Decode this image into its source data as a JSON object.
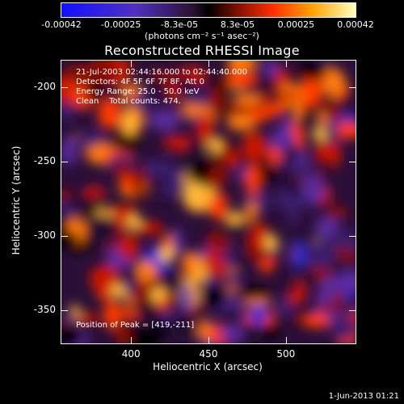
{
  "colorbar": {
    "ticks": [
      {
        "label": "-0.00042",
        "value": -0.00042
      },
      {
        "label": "-0.00025",
        "value": -0.00025
      },
      {
        "label": "-8.3e-05",
        "value": -8.3e-05
      },
      {
        "label": "8.3e-05",
        "value": 8.3e-05
      },
      {
        "label": "0.00025",
        "value": 0.00025
      },
      {
        "label": "0.00042",
        "value": 0.00042
      }
    ],
    "units": "(photons cm⁻² s⁻¹ asec⁻²)"
  },
  "title": "Reconstructed RHESSI Image",
  "info": {
    "line1": "21-Jul-2003 02:44:16.000 to 02:44:40.000",
    "line2": "Detectors: 4F 5F 6F 7F 8F, Att 0",
    "line3": "Energy Range: 25.0 - 50.0 keV",
    "line4": "Clean    Total counts: 474."
  },
  "peak": "Position of Peak = [419,-211]",
  "axes": {
    "xlabel": "Heliocentric X (arcsec)",
    "ylabel": "Heliocentric Y (arcsec)",
    "xticks": [
      {
        "label": "400",
        "value": 400
      },
      {
        "label": "450",
        "value": 450
      },
      {
        "label": "500",
        "value": 500
      }
    ],
    "yticks": [
      {
        "label": "-200",
        "value": -200
      },
      {
        "label": "-250",
        "value": -250
      },
      {
        "label": "-300",
        "value": -300
      },
      {
        "label": "-350",
        "value": -350
      }
    ],
    "xlim": [
      355,
      545
    ],
    "ylim": [
      -372,
      -182
    ]
  },
  "timestamp": "1-Jun-2013 01:21"
}
